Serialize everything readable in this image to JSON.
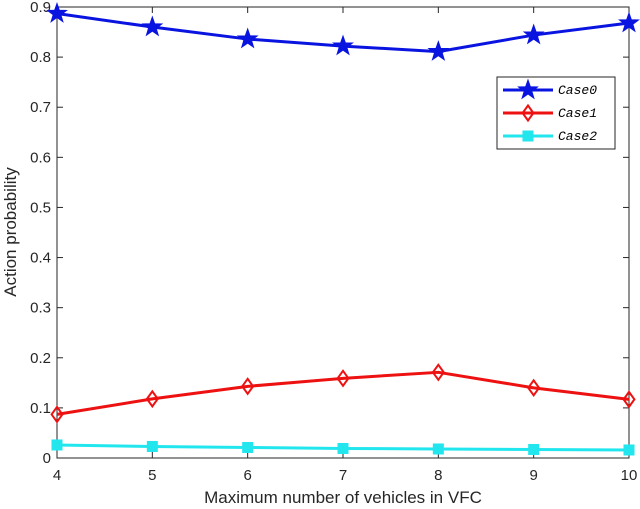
{
  "chart_data": {
    "type": "line",
    "xlabel": "Maximum number of vehicles in VFC",
    "ylabel": "Action probability",
    "x": [
      4,
      5,
      6,
      7,
      8,
      9,
      10
    ],
    "xlim": [
      4,
      10
    ],
    "ylim": [
      0,
      0.9
    ],
    "xticks": [
      "4",
      "5",
      "6",
      "7",
      "8",
      "9",
      "10"
    ],
    "yticks": [
      "0",
      "0.1",
      "0.2",
      "0.3",
      "0.4",
      "0.5",
      "0.6",
      "0.7",
      "0.8",
      "0.9"
    ],
    "grid": false,
    "legend_position": "top-right",
    "series": [
      {
        "name": "Case0",
        "color": "#0a14e0",
        "marker": "star",
        "values": [
          0.887,
          0.86,
          0.836,
          0.822,
          0.811,
          0.844,
          0.868
        ]
      },
      {
        "name": "Case1",
        "color": "#ee1111",
        "marker": "diamond",
        "values": [
          0.087,
          0.118,
          0.143,
          0.159,
          0.171,
          0.14,
          0.117
        ]
      },
      {
        "name": "Case2",
        "color": "#22e6ee",
        "marker": "square",
        "values": [
          0.026,
          0.023,
          0.021,
          0.019,
          0.018,
          0.017,
          0.016
        ]
      }
    ]
  }
}
